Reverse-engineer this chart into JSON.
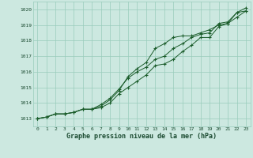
{
  "title": "Graphe pression niveau de la mer (hPa)",
  "bg_color": "#cce8e0",
  "grid_color": "#99ccbb",
  "line_color": "#1a5c2a",
  "x_labels": [
    "0",
    "1",
    "2",
    "3",
    "4",
    "5",
    "6",
    "7",
    "8",
    "9",
    "10",
    "11",
    "12",
    "13",
    "14",
    "15",
    "16",
    "17",
    "18",
    "19",
    "20",
    "21",
    "22",
    "23"
  ],
  "xlim": [
    -0.5,
    23.5
  ],
  "ylim": [
    1012.5,
    1020.5
  ],
  "yticks": [
    1013,
    1014,
    1015,
    1016,
    1017,
    1018,
    1019,
    1020
  ],
  "series": [
    [
      1013.0,
      1013.1,
      1013.3,
      1013.3,
      1013.4,
      1013.6,
      1013.6,
      1013.7,
      1014.0,
      1014.6,
      1015.0,
      1015.4,
      1015.8,
      1016.4,
      1016.5,
      1016.8,
      1017.3,
      1017.7,
      1018.2,
      1018.2,
      1018.9,
      1019.1,
      1019.8,
      1019.9
    ],
    [
      1013.0,
      1013.1,
      1013.3,
      1013.3,
      1013.4,
      1013.6,
      1013.6,
      1013.9,
      1014.3,
      1014.9,
      1015.6,
      1016.0,
      1016.3,
      1016.8,
      1017.0,
      1017.5,
      1017.8,
      1018.2,
      1018.4,
      1018.5,
      1019.1,
      1019.2,
      1019.8,
      1020.1
    ],
    [
      1013.0,
      1013.1,
      1013.3,
      1013.3,
      1013.4,
      1013.6,
      1013.6,
      1013.8,
      1014.2,
      1014.8,
      1015.7,
      1016.2,
      1016.6,
      1017.5,
      1017.8,
      1018.2,
      1018.3,
      1018.3,
      1018.5,
      1018.7,
      1019.0,
      1019.1,
      1019.5,
      1019.9
    ]
  ]
}
